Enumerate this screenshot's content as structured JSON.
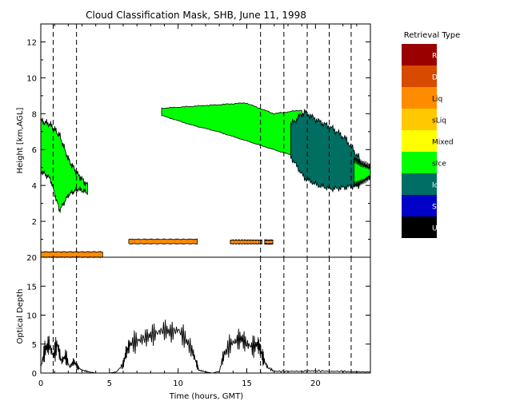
{
  "chart_data": [
    {
      "type": "heatmap",
      "title": "Cloud Classification Mask, SHB, June 11, 1998",
      "ylabel": "Height [km,AGL]",
      "xlim": [
        0,
        24
      ],
      "ylim": [
        0,
        13
      ],
      "x_ticks": [
        0,
        5,
        10,
        15,
        20
      ],
      "y_ticks": [
        2,
        4,
        6,
        8,
        10,
        12
      ],
      "dashed_x": [
        0.9,
        2.6,
        16.0,
        17.7,
        19.4,
        21.0,
        22.6
      ],
      "legend": {
        "title": "Retrieval Type",
        "placement": "right",
        "entries": [
          {
            "label": "Rain",
            "color": "#9a0000"
          },
          {
            "label": "Driz",
            "color": "#d84a00"
          },
          {
            "label": "Liq",
            "color": "#ff8c00"
          },
          {
            "label": "sLiq",
            "color": "#ffc800"
          },
          {
            "label": "Mixed",
            "color": "#ffff00"
          },
          {
            "label": "sIce",
            "color": "#00ff00"
          },
          {
            "label": "Ice",
            "color": "#006e62"
          },
          {
            "label": "Snow",
            "color": "#0000c8"
          },
          {
            "label": "Uncrt",
            "color": "#000000"
          }
        ]
      },
      "regions": [
        {
          "class": "sIce",
          "x": [
            0.0,
            3.4
          ],
          "bottom": [
            4.8,
            4.4,
            2.6,
            3.5,
            3.8,
            3.6
          ],
          "top": [
            7.6,
            7.4,
            6.8,
            5.4,
            4.6,
            4.0
          ]
        },
        {
          "class": "sIce",
          "x": [
            8.8,
            19.0
          ],
          "bottom": [
            7.9,
            7.4,
            7.0,
            6.5,
            6.0,
            5.5
          ],
          "top": [
            8.3,
            8.4,
            8.5,
            8.6,
            8.0,
            8.2
          ]
        },
        {
          "class": "Ice",
          "x": [
            18.2,
            23.2
          ],
          "bottom": [
            5.6,
            4.4,
            4.0,
            3.8,
            3.9,
            4.0
          ],
          "top": [
            7.4,
            8.1,
            7.6,
            7.2,
            6.6,
            5.5
          ]
        },
        {
          "class": "sIce",
          "x": [
            22.8,
            24.0
          ],
          "bottom": [
            4.0,
            4.2,
            4.5
          ],
          "top": [
            5.5,
            5.2,
            5.0
          ]
        },
        {
          "class": "Liq",
          "x": [
            6.4,
            11.4
          ],
          "bottom": [
            0.75
          ],
          "top": [
            1.0
          ]
        },
        {
          "class": "Liq",
          "x": [
            13.8,
            16.1
          ],
          "bottom": [
            0.75
          ],
          "top": [
            0.95
          ]
        },
        {
          "class": "Liq",
          "x": [
            16.3,
            16.9
          ],
          "bottom": [
            0.75
          ],
          "top": [
            0.95
          ]
        },
        {
          "class": "Liq",
          "x": [
            0.0,
            4.5
          ],
          "bottom": [
            0.0
          ],
          "top": [
            0.3
          ]
        }
      ]
    },
    {
      "type": "line",
      "ylabel": "Optical Depth",
      "xlabel": "Time (hours, GMT)",
      "xlim": [
        0,
        24
      ],
      "ylim": [
        0,
        20
      ],
      "x_ticks": [
        0,
        5,
        10,
        15,
        20
      ],
      "y_ticks": [
        0,
        5,
        10,
        15,
        20
      ],
      "dashed_x": [
        0.9,
        2.6,
        16.0,
        17.7,
        19.4,
        21.0,
        22.6
      ],
      "x": [
        0,
        0.3,
        0.6,
        0.9,
        1.2,
        1.5,
        1.8,
        2.1,
        2.4,
        2.7,
        3.0,
        3.5,
        4,
        4.5,
        5,
        5.5,
        6.0,
        6.2,
        6.5,
        7.0,
        7.5,
        8.0,
        8.5,
        9.0,
        9.5,
        10.0,
        10.5,
        11.0,
        11.3,
        11.5,
        12.0,
        12.5,
        13.0,
        13.3,
        13.8,
        14.2,
        14.6,
        15.0,
        15.4,
        15.8,
        16.0,
        16.2,
        16.5,
        17.0,
        18,
        19,
        20,
        21,
        22,
        23,
        24
      ],
      "values": [
        1,
        4,
        5,
        3,
        5,
        2,
        3,
        1,
        2,
        1,
        0.5,
        0.2,
        0,
        0,
        0,
        0.2,
        1.5,
        3.5,
        5,
        5.5,
        6,
        6.5,
        7,
        7.5,
        7,
        7.5,
        6,
        4,
        2,
        0.5,
        0.2,
        0,
        0.3,
        3,
        5,
        5.5,
        6,
        5,
        4.5,
        5,
        4,
        2.5,
        1,
        0.3,
        0.3,
        0.3,
        0.4,
        0.3,
        0.3,
        0.2,
        0.2
      ]
    }
  ],
  "colors": {
    "frame": "#000000",
    "background": "#ffffff"
  }
}
